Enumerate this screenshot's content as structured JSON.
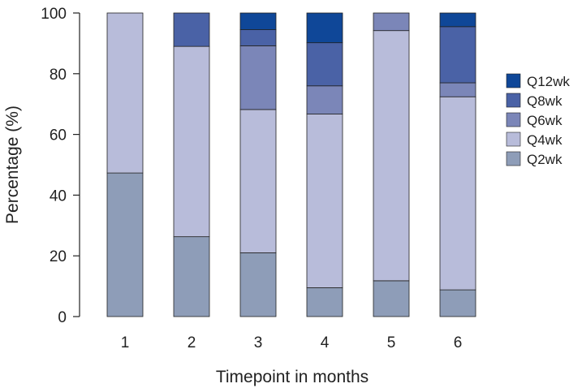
{
  "chart_data": {
    "type": "bar",
    "stacked": true,
    "title": "",
    "xlabel": "Timepoint in months",
    "ylabel": "Percentage (%)",
    "ylim": [
      0,
      100
    ],
    "yticks": [
      "0",
      "20",
      "40",
      "60",
      "80",
      "100"
    ],
    "categories": [
      "1",
      "2",
      "3",
      "4",
      "5",
      "6"
    ],
    "legend_position": "right",
    "grid": false,
    "series": [
      {
        "name": "Q2wk",
        "color": "#8e9db8",
        "values": [
          47.3,
          26.3,
          21.0,
          9.5,
          11.8,
          8.8
        ]
      },
      {
        "name": "Q4wk",
        "color": "#b8bcda",
        "values": [
          52.7,
          62.7,
          47.2,
          57.2,
          82.4,
          63.6
        ]
      },
      {
        "name": "Q6wk",
        "color": "#7b86b8",
        "values": [
          0,
          0,
          21.0,
          9.3,
          5.8,
          4.6
        ]
      },
      {
        "name": "Q8wk",
        "color": "#4a62a6",
        "values": [
          0,
          11.0,
          5.3,
          14.2,
          0,
          18.5
        ]
      },
      {
        "name": "Q12wk",
        "color": "#0f4798",
        "values": [
          0,
          0,
          5.5,
          9.8,
          0,
          4.5
        ]
      }
    ]
  }
}
